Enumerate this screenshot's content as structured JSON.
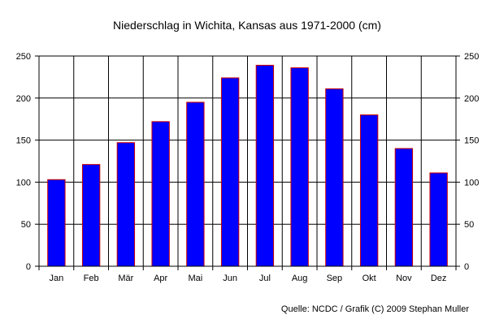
{
  "chart_data": {
    "type": "bar",
    "title": "Niederschlag in Wichita, Kansas aus 1971-2000 (cm)",
    "categories": [
      "Jan",
      "Feb",
      "Mär",
      "Apr",
      "Mai",
      "Jun",
      "Jul",
      "Aug",
      "Sep",
      "Okt",
      "Nov",
      "Dez"
    ],
    "values": [
      103,
      121,
      147,
      172,
      195,
      224,
      239,
      236,
      211,
      180,
      140,
      111
    ],
    "ylim": [
      0,
      250
    ],
    "yticks": [
      "0",
      "50",
      "100",
      "150",
      "200",
      "250"
    ],
    "yticks_right": [
      "0",
      "50",
      "100",
      "150",
      "200",
      "250"
    ],
    "grid": true,
    "bar_color": "#0000ff",
    "bar_edge_color": "#cc0000",
    "source": "Quelle: NCDC / Grafik (C) 2009 Stephan Muller"
  }
}
